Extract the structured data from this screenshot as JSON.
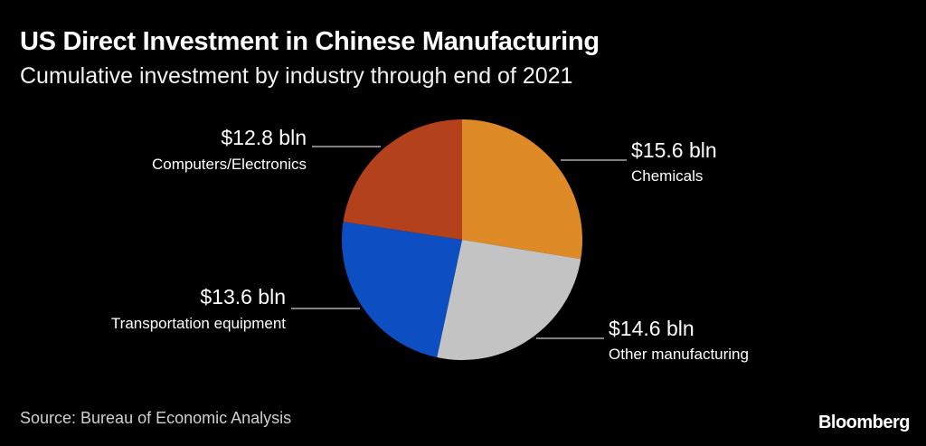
{
  "title": "US Direct Investment in Chinese Manufacturing",
  "subtitle": "Cumulative investment by industry through end of 2021",
  "source": "Source: Bureau of Economic Analysis",
  "brand": "Bloomberg",
  "chart_data": {
    "type": "pie",
    "title": "US Direct Investment in Chinese Manufacturing",
    "subtitle": "Cumulative investment by industry through end of 2021",
    "unit": "bln USD",
    "slices": [
      {
        "name": "Chemicals",
        "value": 15.6,
        "label": "$15.6 bln",
        "color": "#dd8a27"
      },
      {
        "name": "Other manufacturing",
        "value": 14.6,
        "label": "$14.6 bln",
        "color": "#c3c3c3"
      },
      {
        "name": "Transportation equipment",
        "value": 13.6,
        "label": "$13.6 bln",
        "color": "#0d4fc2"
      },
      {
        "name": "Computers/Electronics",
        "value": 12.8,
        "label": "$12.8 bln",
        "color": "#b3411c"
      }
    ]
  }
}
